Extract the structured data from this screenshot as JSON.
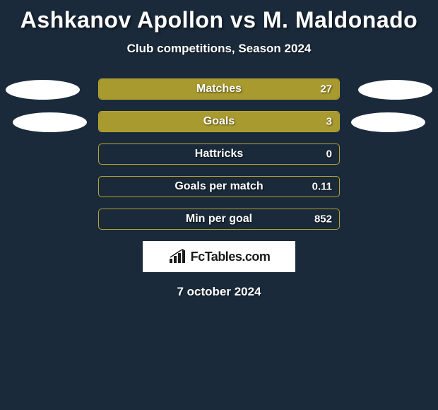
{
  "title": "Ashkanov Apollon vs M. Maldonado",
  "subtitle": "Club competitions, Season 2024",
  "background_color": "#1a2a3a",
  "bar_border_color": "#b5a432",
  "bar_fill_color": "#a89a2e",
  "text_color": "#ffffff",
  "ellipse_color": "#ffffff",
  "stats": [
    {
      "label": "Matches",
      "value": "27",
      "fill_pct": 100
    },
    {
      "label": "Goals",
      "value": "3",
      "fill_pct": 100
    },
    {
      "label": "Hattricks",
      "value": "0",
      "fill_pct": 0
    },
    {
      "label": "Goals per match",
      "value": "0.11",
      "fill_pct": 0
    },
    {
      "label": "Min per goal",
      "value": "852",
      "fill_pct": 0
    }
  ],
  "logo_text": "FcTables.com",
  "date": "7 october 2024"
}
